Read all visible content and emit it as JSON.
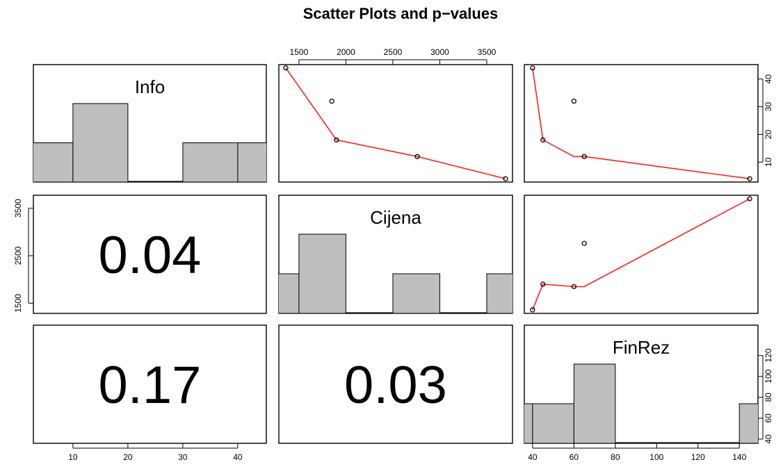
{
  "chart_data": {
    "type": "scatter",
    "title": "Scatter Plots and p−values",
    "variables": [
      "Info",
      "Cijena",
      "FinRez"
    ],
    "observations": {
      "Info": [
        44,
        32,
        18,
        12,
        4
      ],
      "Cijena": [
        1360,
        1850,
        1900,
        2760,
        3700
      ],
      "FinRez": [
        40,
        60,
        45,
        65,
        145
      ]
    },
    "smooth_lines": {
      "Info_vs_Cijena": {
        "x": [
          1360,
          1900,
          2760,
          3700
        ],
        "y": [
          44,
          18,
          12,
          4
        ]
      },
      "Info_vs_FinRez": {
        "x": [
          40,
          45,
          60,
          65,
          145
        ],
        "y": [
          44,
          18,
          12,
          12,
          4
        ]
      },
      "Cijena_vs_FinRez": {
        "x": [
          40,
          45,
          60,
          65,
          145
        ],
        "y": [
          1360,
          1900,
          1850,
          1850,
          3700
        ]
      }
    },
    "histograms": {
      "Info": {
        "breaks": [
          0,
          10,
          20,
          30,
          40,
          50
        ],
        "counts": [
          1,
          2,
          0,
          1,
          1
        ]
      },
      "Cijena": {
        "breaks": [
          1000,
          1500,
          2000,
          2500,
          3000,
          3500,
          4000
        ],
        "counts": [
          1,
          2,
          0,
          1,
          0,
          1
        ]
      },
      "FinRez": {
        "breaks": [
          20,
          40,
          60,
          80,
          100,
          120,
          140,
          160
        ],
        "counts": [
          1,
          1,
          2,
          0,
          0,
          0,
          1
        ]
      }
    },
    "p_values": [
      {
        "pair": [
          "Info",
          "Cijena"
        ],
        "value": "0.04"
      },
      {
        "pair": [
          "Info",
          "FinRez"
        ],
        "value": "0.17"
      },
      {
        "pair": [
          "Cijena",
          "FinRez"
        ],
        "value": "0.03"
      }
    ],
    "ticks": {
      "Info": [
        "10",
        "20",
        "30",
        "40"
      ],
      "Cijena_top": [
        "1500",
        "2000",
        "2500",
        "3000",
        "3500"
      ],
      "Cijena_left": [
        "1500",
        "2500",
        "3500"
      ],
      "FinRez_bottom": [
        "40",
        "60",
        "80",
        "100",
        "120",
        "140"
      ],
      "Info_right": [
        "10",
        "20",
        "30",
        "40"
      ],
      "FinRez_right": [
        "40",
        "60",
        "80",
        "100",
        "120"
      ]
    },
    "ranges": {
      "Info": [
        2.8,
        45.2
      ],
      "Cijena": [
        1286,
        3774
      ],
      "FinRez": [
        36,
        149
      ]
    },
    "colors": {
      "bar_fill": "#bebebe",
      "smooth_line": "#ff2020",
      "points": "#000000"
    },
    "grid": false
  }
}
